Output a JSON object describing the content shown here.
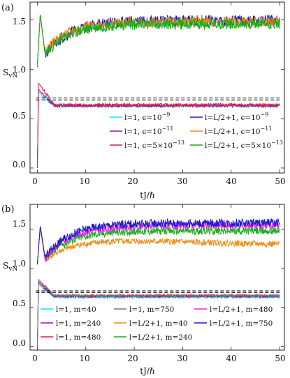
{
  "figure": {
    "panels": [
      {
        "label": "(a)",
        "ylabel": "S",
        "ylabel_sub": "vN",
        "xlabel": "tJ/ℏ",
        "reference_y": [
          0.69,
          0.71
        ]
      },
      {
        "label": "(b)",
        "ylabel": "S",
        "ylabel_sub": "vN",
        "xlabel": "tJ/ℏ",
        "reference_y": [
          0.69,
          0.71
        ]
      }
    ],
    "dashed_line_color": "#000000"
  },
  "chart_data": [
    {
      "type": "line",
      "title": "",
      "xlabel": "tJ/ℏ",
      "ylabel": "SvN",
      "xlim": [
        -1.5,
        51
      ],
      "ylim": [
        -0.05,
        1.68
      ],
      "xticks": [
        0,
        10,
        20,
        30,
        40,
        50
      ],
      "yticks": [
        0.0,
        0.5,
        1.0,
        1.5
      ],
      "xtick_labels": [
        "0",
        "10",
        "20",
        "30",
        "40",
        "50"
      ],
      "ytick_labels": [
        "0.0",
        "0.5",
        "1.0",
        "1.5"
      ],
      "legend_position": "bottom-right, three rows, two columns",
      "grid": false,
      "series": [
        {
          "name": "l=1, ϵ=10",
          "sup": "−9",
          "color": "#00e5ee",
          "kind": "small",
          "value": 0.63,
          "noise": 0.015,
          "start_peak": 0.78,
          "seed": 11
        },
        {
          "name": "l=1, ϵ=10",
          "sup": "−11",
          "color": "#8b1a9e",
          "kind": "small",
          "value": 0.63,
          "noise": 0.014,
          "start_peak": 0.8,
          "seed": 12
        },
        {
          "name": "l=1, ϵ=5×10",
          "sup": "−13",
          "color": "#e8193c",
          "kind": "small",
          "value": 0.64,
          "noise": 0.014,
          "start_peak": 0.86,
          "seed": 13
        },
        {
          "name": "l=L/2+1, ϵ=10",
          "sup": "−9",
          "color": "#1a1acd",
          "kind": "big",
          "y0": 1.05,
          "peak": 1.55,
          "dip": 1.15,
          "value": 1.49,
          "noise": 0.06,
          "seed": 21
        },
        {
          "name": "l=L/2+1, ϵ=10",
          "sup": "−11",
          "color": "#f08c12",
          "kind": "big",
          "y0": 1.05,
          "peak": 1.55,
          "dip": 1.18,
          "value": 1.48,
          "noise": 0.055,
          "seed": 22
        },
        {
          "name": "l=L/2+1, ϵ=5×10",
          "sup": "−13",
          "color": "#1aab1a",
          "kind": "big",
          "y0": 1.02,
          "peak": 1.57,
          "dip": 1.15,
          "value": 1.46,
          "noise": 0.055,
          "seed": 23
        }
      ]
    },
    {
      "type": "line",
      "title": "",
      "xlabel": "tJ/ℏ",
      "ylabel": "SvN",
      "xlim": [
        -1.5,
        51
      ],
      "ylim": [
        -0.05,
        1.82
      ],
      "xticks": [
        0,
        10,
        20,
        30,
        40,
        50
      ],
      "yticks": [
        0.0,
        0.5,
        1.0,
        1.5
      ],
      "xtick_labels": [
        "0",
        "10",
        "20",
        "30",
        "40",
        "50"
      ],
      "ytick_labels": [
        "0.0",
        "0.5",
        "1.0",
        "1.5"
      ],
      "legend_position": "bottom, three rows, three columns",
      "grid": false,
      "series": [
        {
          "name": "l=1, m=40",
          "color": "#00e5ee",
          "kind": "small",
          "value": 0.63,
          "noise": 0.015,
          "start_peak": 0.8,
          "seed": 31
        },
        {
          "name": "l=1, m=240",
          "color": "#8b1a9e",
          "kind": "small",
          "value": 0.64,
          "noise": 0.014,
          "start_peak": 0.82,
          "seed": 32
        },
        {
          "name": "l=1, m=480",
          "color": "#e8193c",
          "kind": "small",
          "value": 0.65,
          "noise": 0.014,
          "start_peak": 0.84,
          "seed": 33
        },
        {
          "name": "l=1, m=750",
          "color": "#777777",
          "kind": "small",
          "value": 0.65,
          "noise": 0.012,
          "start_peak": 0.86,
          "seed": 34
        },
        {
          "name": "l=L/2+1, m=40",
          "color": "#f08c12",
          "kind": "orange",
          "y0": 1.05,
          "peak": 1.52,
          "dip": 1.1,
          "value": 1.3,
          "noise": 0.04,
          "seed": 41
        },
        {
          "name": "l=L/2+1, m=240",
          "color": "#1aab1a",
          "kind": "big",
          "y0": 1.05,
          "peak": 1.52,
          "dip": 1.12,
          "value": 1.48,
          "noise": 0.05,
          "seed": 42
        },
        {
          "name": "l=L/2+1, m=480",
          "color": "#ee22ee",
          "kind": "big",
          "y0": 1.05,
          "peak": 1.53,
          "dip": 1.12,
          "value": 1.55,
          "noise": 0.05,
          "seed": 43
        },
        {
          "name": "l=L/2+1, m=750",
          "color": "#1a1acd",
          "kind": "big",
          "y0": 1.05,
          "peak": 1.55,
          "dip": 1.14,
          "value": 1.58,
          "noise": 0.055,
          "seed": 44
        }
      ]
    }
  ]
}
